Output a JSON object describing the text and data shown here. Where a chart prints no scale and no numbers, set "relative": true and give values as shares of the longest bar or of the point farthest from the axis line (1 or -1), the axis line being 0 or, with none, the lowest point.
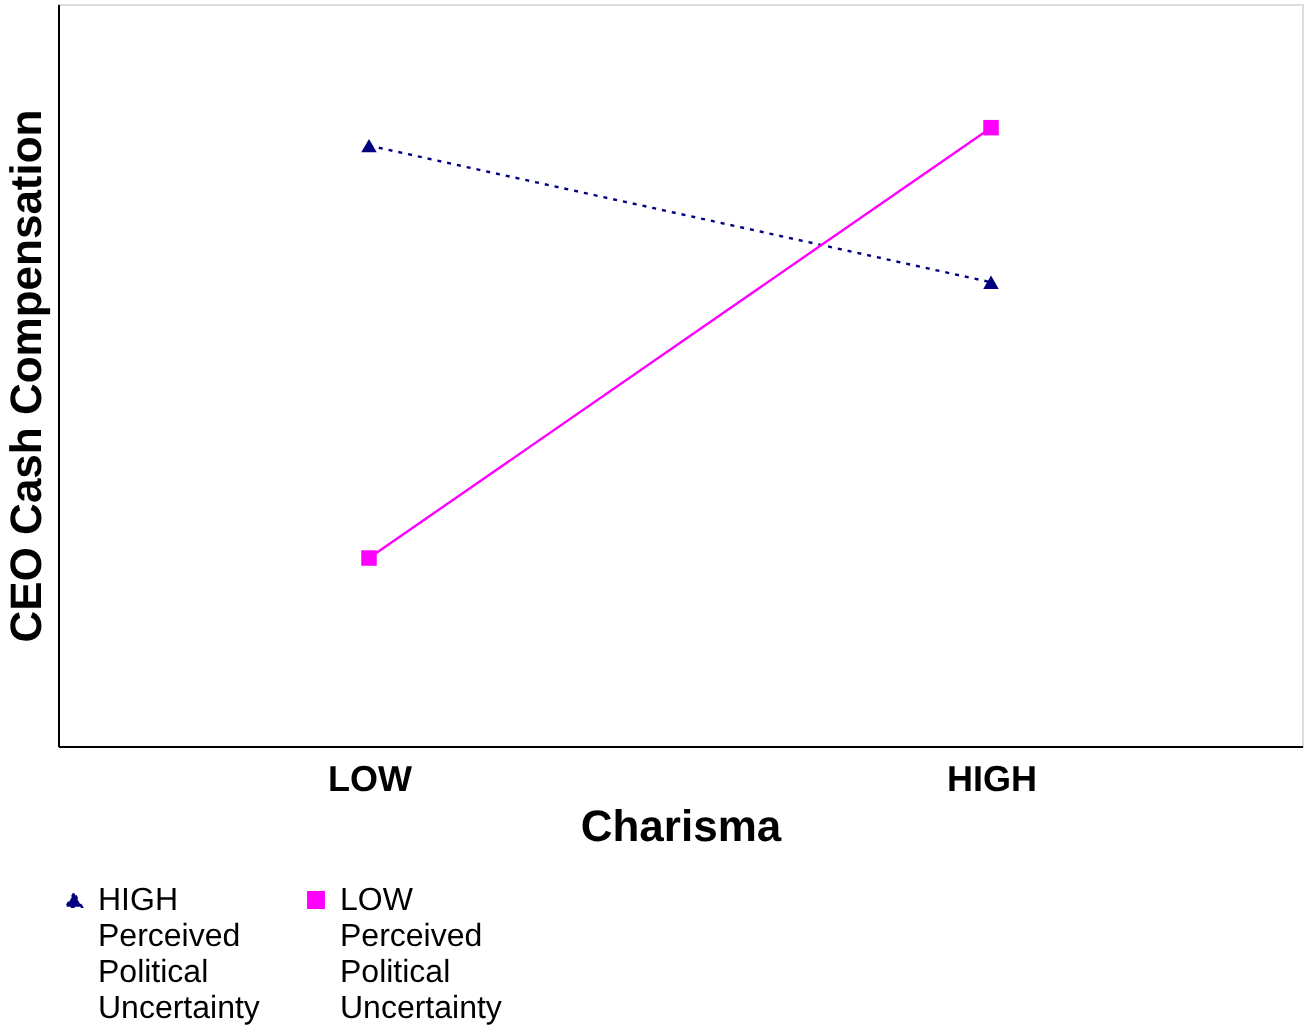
{
  "chart_data": {
    "type": "line",
    "xlabel": "Charisma",
    "ylabel": "CEO Cash Compensation",
    "categories": [
      "LOW",
      "HIGH"
    ],
    "relative": true,
    "legend": "bottom",
    "grid": false,
    "series": [
      {
        "name": "HIGH Perceived Political Uncertainty",
        "color": "#000080",
        "values": [
          0.971,
          0.75
        ],
        "marker": "triangle",
        "line_style": "dotted"
      },
      {
        "name": "LOW Perceived Political Uncertainty",
        "color": "#ff00ff",
        "values": [
          0.304,
          1
        ],
        "marker": "square",
        "line_style": "solid"
      }
    ]
  }
}
